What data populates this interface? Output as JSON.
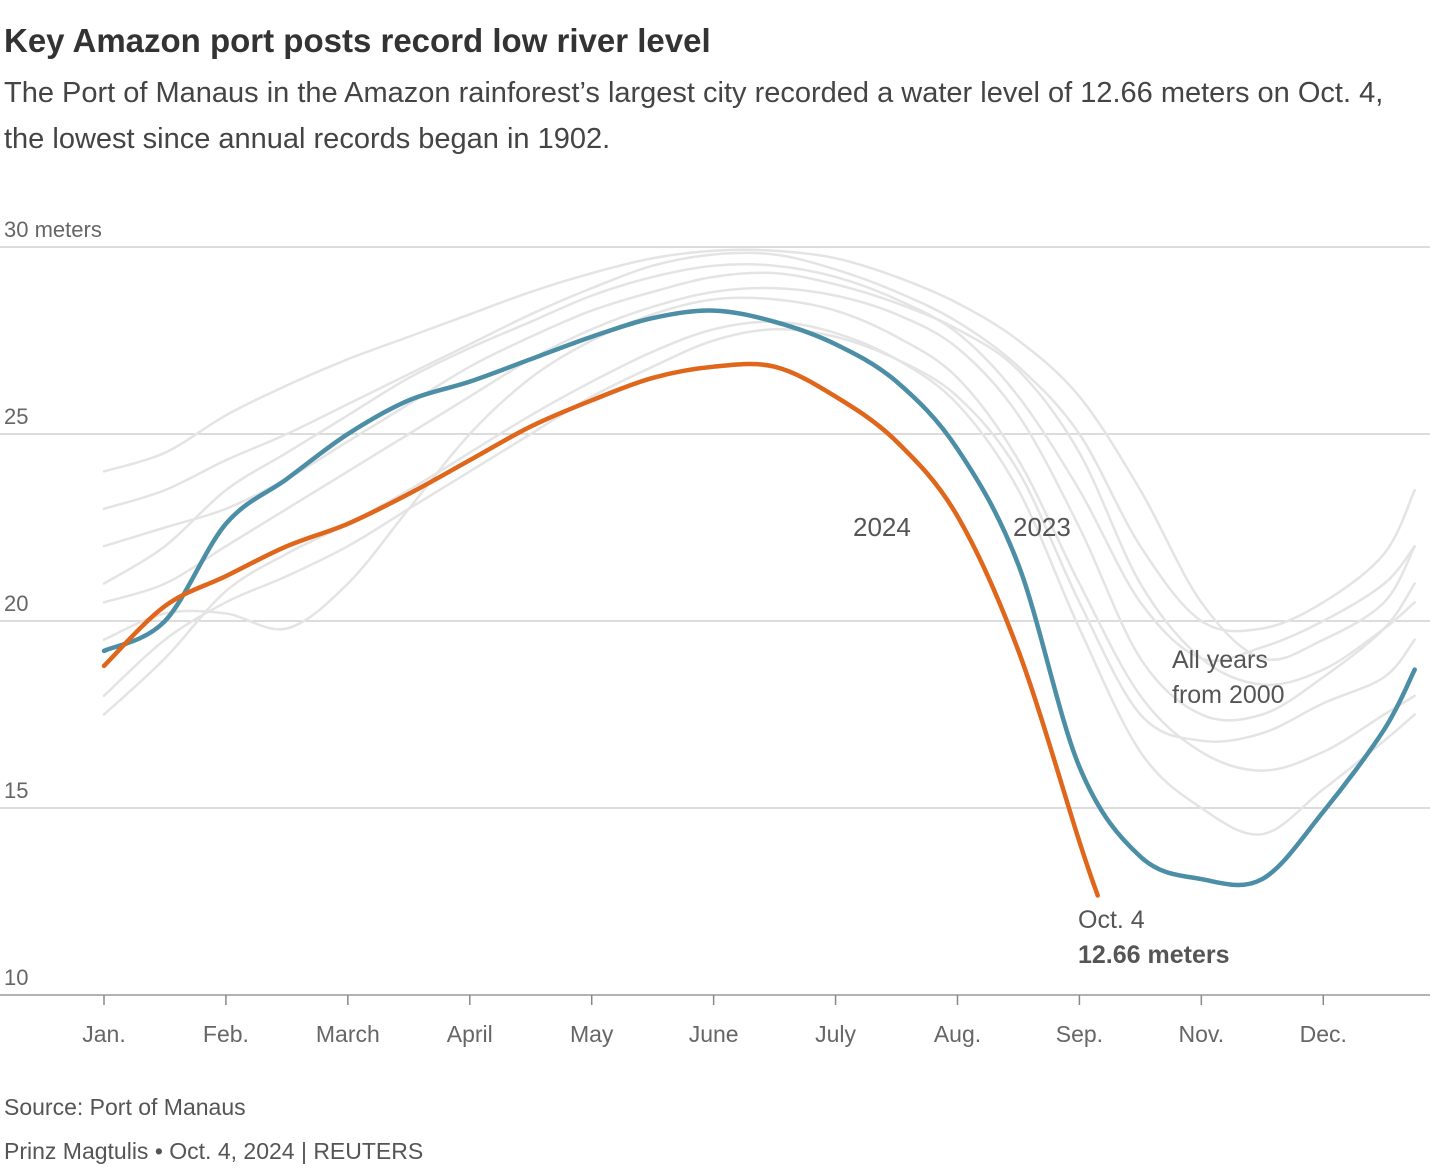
{
  "chart_data": {
    "type": "line",
    "title": "Key Amazon port posts record low river level",
    "subtitle": "The Port of Manaus in the Amazon rainforest’s largest city recorded a water level of 12.66 meters on Oct. 4, the lowest since annual records began in 1902.",
    "x": [
      0,
      0.5,
      1,
      1.5,
      2,
      2.5,
      3,
      3.5,
      4,
      4.5,
      5,
      5.5,
      6,
      6.5,
      7,
      7.5,
      8,
      8.5,
      9,
      9.5,
      10,
      10.5,
      10.75
    ],
    "xlim": [
      0,
      10.9
    ],
    "xticks": [
      {
        "value": 0,
        "label": "Jan."
      },
      {
        "value": 1,
        "label": "Feb."
      },
      {
        "value": 2,
        "label": "March"
      },
      {
        "value": 3,
        "label": "April"
      },
      {
        "value": 4,
        "label": "May"
      },
      {
        "value": 5,
        "label": "June"
      },
      {
        "value": 6,
        "label": "July"
      },
      {
        "value": 7,
        "label": "Aug."
      },
      {
        "value": 8,
        "label": "Sep."
      },
      {
        "value": 9,
        "label": "Nov."
      },
      {
        "value": 10,
        "label": "Dec."
      }
    ],
    "ylim": [
      10,
      30
    ],
    "yticks": [
      10,
      15,
      20,
      25,
      {
        "value": 30,
        "label": "30 meters"
      }
    ],
    "grid": true,
    "series": [
      {
        "color": "#e4e4e4",
        "values": [
          21,
          22,
          23.5,
          24.5,
          25.5,
          26.5,
          27.3,
          28,
          28.7,
          29.2,
          29.5,
          29.5,
          29.2,
          28.6,
          27.7,
          26,
          23.5,
          20.5,
          19,
          19.3,
          20,
          21,
          22
        ]
      },
      {
        "color": "#e4e4e4",
        "values": [
          23,
          23.5,
          24.3,
          25,
          25.8,
          26.6,
          27.4,
          28.2,
          28.9,
          29.5,
          29.8,
          29.8,
          29.4,
          28.8,
          28,
          26.8,
          25,
          22,
          20,
          19.8,
          20.5,
          21.8,
          23.5
        ]
      },
      {
        "color": "#e4e4e4",
        "values": [
          18,
          19.5,
          20.5,
          21.2,
          22,
          23,
          24,
          25,
          26,
          26.8,
          27.5,
          27.8,
          27.6,
          27,
          26,
          24,
          20.5,
          17.5,
          16.8,
          17,
          17.8,
          18.5,
          19.5
        ]
      },
      {
        "color": "#e4e4e4",
        "values": [
          20.5,
          21,
          22,
          23,
          24,
          25,
          26,
          27,
          27.8,
          28.4,
          28.8,
          28.9,
          28.7,
          28.2,
          27.3,
          25.5,
          22.5,
          19,
          17.5,
          17.5,
          18.5,
          19.8,
          21
        ]
      },
      {
        "color": "#e4e4e4",
        "values": [
          22,
          22.5,
          23,
          23.8,
          24.8,
          25.8,
          26.8,
          27.6,
          28.3,
          28.8,
          29.2,
          29.3,
          29,
          28.5,
          27.8,
          26.7,
          24.5,
          21,
          19,
          18.3,
          18.7,
          19.8,
          20.5
        ]
      },
      {
        "color": "#e4e4e4",
        "values": [
          19.5,
          20.2,
          20.2,
          19.8,
          21,
          23,
          25,
          26.5,
          27.5,
          28.2,
          28.6,
          28.6,
          28.3,
          27.6,
          26.5,
          24.3,
          21,
          18,
          16.5,
          16,
          16.5,
          17.5,
          18
        ]
      },
      {
        "color": "#e4e4e4",
        "values": [
          24,
          24.5,
          25.5,
          26.3,
          27,
          27.6,
          28.2,
          28.8,
          29.3,
          29.7,
          29.9,
          29.9,
          29.7,
          29.2,
          28.5,
          27.5,
          26,
          23.5,
          20.5,
          19,
          19.5,
          20.5,
          22
        ]
      },
      {
        "color": "#e4e4e4",
        "values": [
          17.5,
          19,
          20.8,
          21.8,
          22.6,
          23.5,
          24.5,
          25.5,
          26.4,
          27.2,
          27.8,
          28,
          27.7,
          27,
          25.8,
          23.5,
          19.8,
          16.5,
          15,
          14.3,
          15.5,
          16.8,
          17.5
        ]
      },
      {
        "name": "2023",
        "color": "#4b8ea5",
        "values": [
          19.2,
          20.0,
          22.6,
          23.8,
          25.0,
          25.9,
          26.4,
          27.0,
          27.6,
          28.1,
          28.3,
          28.0,
          27.4,
          26.4,
          24.6,
          21.5,
          16.1,
          13.7,
          13.1,
          13.1,
          14.9,
          17.1,
          18.7
        ]
      },
      {
        "name": "2024",
        "color": "#e0661c",
        "x": [
          0,
          0.5,
          1,
          1.5,
          2,
          2.5,
          3,
          3.5,
          4,
          4.5,
          5,
          5.5,
          6,
          6.5,
          7,
          7.5,
          8,
          8.15
        ],
        "values": [
          18.8,
          20.4,
          21.2,
          22.0,
          22.6,
          23.4,
          24.3,
          25.2,
          25.9,
          26.5,
          26.8,
          26.8,
          26.0,
          24.8,
          22.8,
          19.2,
          14.1,
          12.66
        ],
        "value_labels": [
          null,
          null,
          null,
          null,
          null,
          null,
          null,
          null,
          null,
          null,
          null,
          null,
          null,
          null,
          null,
          null,
          null,
          "12.66 meters"
        ]
      }
    ],
    "annotations": [
      {
        "text": "All years"
      },
      {
        "text": "from 2000"
      },
      {
        "text": "Oct. 4"
      }
    ],
    "source": "Source: Port of Manaus",
    "credit": "Prinz Magtulis • Oct. 4, 2024 | REUTERS"
  }
}
